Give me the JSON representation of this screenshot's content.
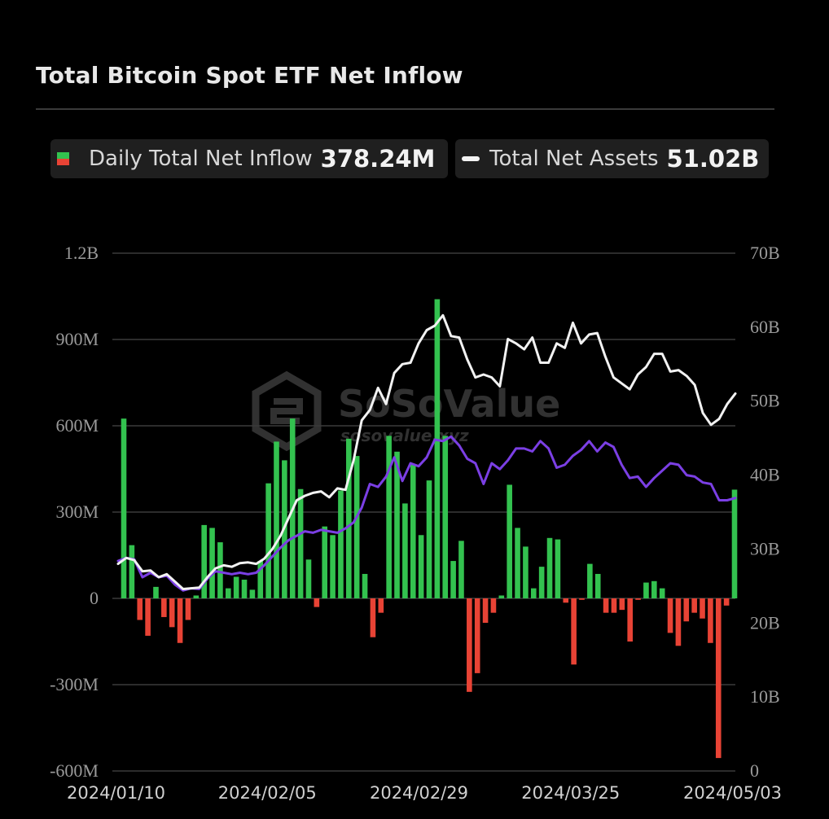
{
  "title": "Total Bitcoin Spot ETF Net Inflow",
  "legend": {
    "inflow_label": "Daily Total Net Inflow",
    "inflow_value": "378.24M",
    "assets_label": "Total Net Assets",
    "assets_value": "51.02B"
  },
  "watermark": {
    "name": "SoSoValue",
    "url": "sosovalue.xyz"
  },
  "colors": {
    "positive": "#33c24f",
    "negative": "#e84335",
    "assets_line": "#f2f2f2",
    "btc_price_line": "#7b3fe4",
    "grid": "#3a3a3a"
  },
  "chart_data": {
    "type": "bar",
    "title": "Total Bitcoin Spot ETF Net Inflow",
    "x_axis_ticks": [
      "2024/01/10",
      "2024/02/05",
      "2024/02/29",
      "2024/03/25",
      "2024/05/03"
    ],
    "y_left_ticks": [
      "1.2B",
      "900M",
      "600M",
      "300M",
      "0",
      "-300M",
      "-600M"
    ],
    "y_right_ticks": [
      "70B",
      "60B",
      "50B",
      "40B",
      "30B",
      "20B",
      "10B",
      "0"
    ],
    "ylim_left_millions": [
      -600,
      1200
    ],
    "ylim_right_billions": [
      0,
      70
    ],
    "grid": true,
    "series": [
      {
        "name": "Daily Total Net Inflow",
        "axis": "left",
        "unit": "M",
        "values": [
          625,
          185,
          -75,
          -130,
          40,
          -65,
          -100,
          -155,
          -75,
          10,
          255,
          245,
          195,
          35,
          75,
          65,
          30,
          130,
          400,
          545,
          480,
          625,
          380,
          135,
          -30,
          250,
          220,
          375,
          555,
          495,
          85,
          -135,
          -50,
          565,
          510,
          330,
          465,
          220,
          410,
          1040,
          565,
          130,
          200,
          -325,
          -260,
          -85,
          -50,
          10,
          395,
          245,
          180,
          35,
          110,
          210,
          205,
          -15,
          -230,
          -5,
          120,
          85,
          -50,
          -50,
          -40,
          -150,
          -5,
          55,
          60,
          35,
          -120,
          -165,
          -80,
          -50,
          -70,
          -155,
          -555,
          -25,
          378
        ]
      },
      {
        "name": "Total Net Assets",
        "axis": "right",
        "unit": "B",
        "values": [
          28,
          28.8,
          28.5,
          27,
          27.1,
          26.2,
          26.6,
          25.6,
          24.6,
          24.7,
          24.8,
          26.2,
          27.4,
          27.8,
          27.6,
          28.1,
          28.2,
          28,
          28.7,
          30,
          31.8,
          34.2,
          36.6,
          37.2,
          37.6,
          37.8,
          37,
          38.2,
          38,
          42,
          47.4,
          48.8,
          51.8,
          49.6,
          53.8,
          55,
          55.2,
          57.8,
          59.6,
          60.2,
          61.6,
          58.8,
          58.6,
          55.6,
          53.2,
          53.6,
          53.2,
          52,
          58.4,
          57.8,
          57,
          58.6,
          55.2,
          55.2,
          57.8,
          57.2,
          60.6,
          57.8,
          59,
          59.2,
          56,
          53.2,
          52.4,
          51.6,
          53.6,
          54.6,
          56.4,
          56.4,
          54,
          54.2,
          53.4,
          52.2,
          48.4,
          46.8,
          47.6,
          49.6,
          51.02
        ]
      },
      {
        "name": "",
        "axis": "right",
        "unit": "B",
        "values": [
          28.4,
          28.8,
          28.6,
          26.2,
          26.8,
          26.2,
          26.4,
          25.2,
          24.4,
          24.7,
          24.6,
          26,
          27,
          26.8,
          26.6,
          26.8,
          26.6,
          26.8,
          27.8,
          29,
          30.2,
          31.2,
          31.8,
          32.4,
          32.2,
          32.6,
          32.4,
          32.2,
          32.8,
          33.6,
          35.6,
          38.8,
          38.4,
          39.8,
          42.4,
          39.2,
          41.6,
          41.2,
          42.4,
          44.8,
          44.6,
          45.2,
          44,
          42.2,
          41.6,
          38.8,
          41.6,
          40.8,
          42,
          43.6,
          43.6,
          43.2,
          44.6,
          43.6,
          41,
          41.4,
          42.6,
          43.4,
          44.6,
          43.2,
          44.4,
          43.8,
          41.4,
          39.6,
          39.8,
          38.4,
          39.6,
          40.6,
          41.6,
          41.4,
          40,
          39.8,
          39,
          38.8,
          36.6,
          36.6,
          36.9
        ]
      }
    ]
  }
}
